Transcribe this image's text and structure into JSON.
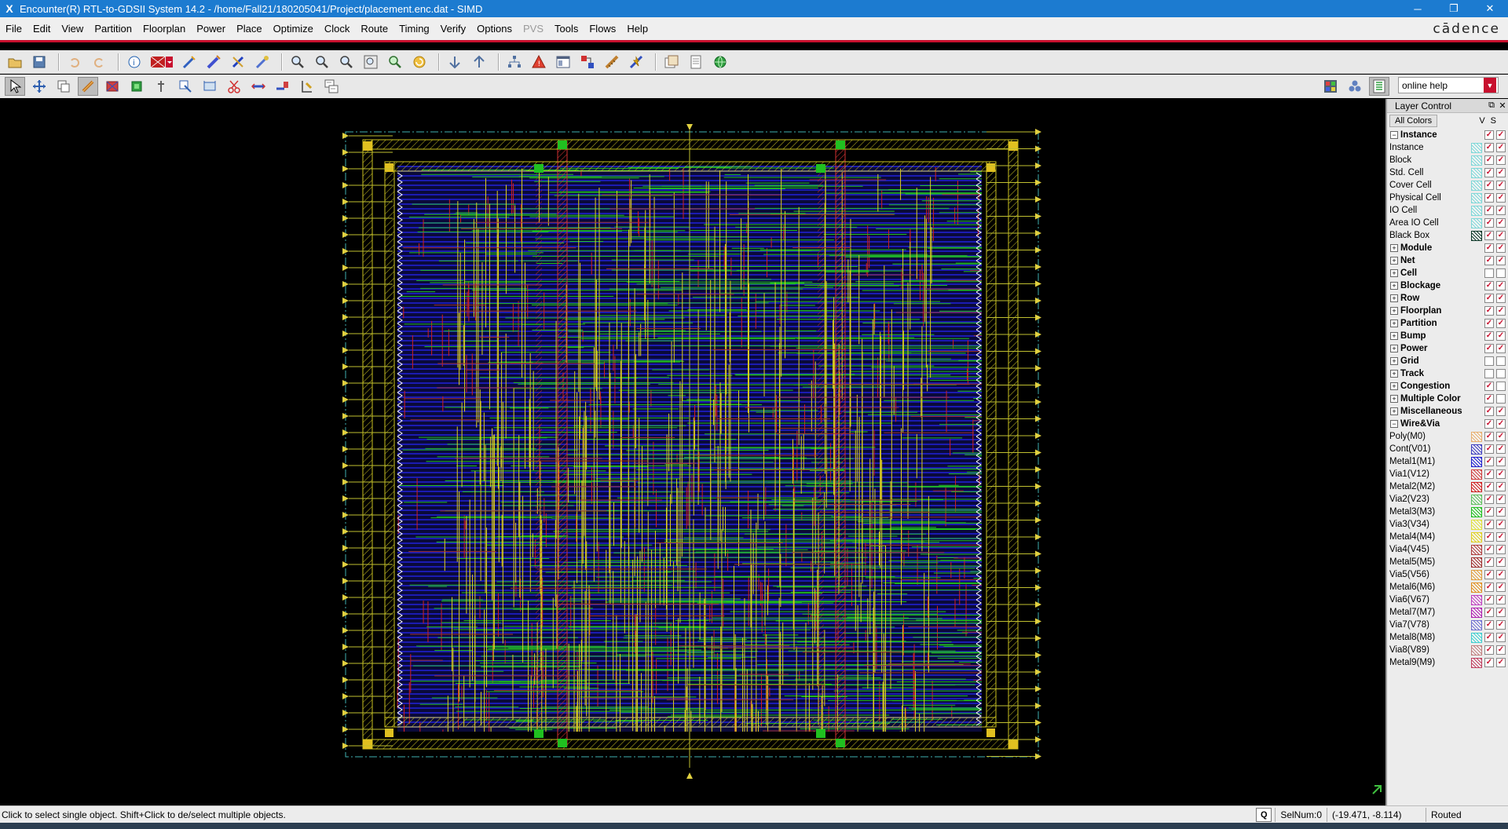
{
  "window": {
    "title": "Encounter(R) RTL-to-GDSII System 14.2 - /home/Fall21/180205041/Project/placement.enc.dat - SIMD",
    "app_icon": "X",
    "minimize": "─",
    "maximize": "❐",
    "close": "✕"
  },
  "menu": {
    "items": [
      {
        "label": "File",
        "enabled": true
      },
      {
        "label": "Edit",
        "enabled": true
      },
      {
        "label": "View",
        "enabled": true
      },
      {
        "label": "Partition",
        "enabled": true
      },
      {
        "label": "Floorplan",
        "enabled": true
      },
      {
        "label": "Power",
        "enabled": true
      },
      {
        "label": "Place",
        "enabled": true
      },
      {
        "label": "Optimize",
        "enabled": true
      },
      {
        "label": "Clock",
        "enabled": true
      },
      {
        "label": "Route",
        "enabled": true
      },
      {
        "label": "Timing",
        "enabled": true
      },
      {
        "label": "Verify",
        "enabled": true
      },
      {
        "label": "Options",
        "enabled": true
      },
      {
        "label": "PVS",
        "enabled": false
      },
      {
        "label": "Tools",
        "enabled": true
      },
      {
        "label": "Flows",
        "enabled": true
      },
      {
        "label": "Help",
        "enabled": true
      }
    ],
    "brand": "cādence"
  },
  "toolbar": {
    "help_search_value": "online help"
  },
  "layer_control": {
    "title": "Layer Control",
    "all_colors": "All Colors",
    "v_header": "V",
    "s_header": "S",
    "rows": [
      {
        "label": "Instance",
        "type": "group",
        "expanded": true,
        "v": true,
        "s": true
      },
      {
        "label": "Instance",
        "type": "item",
        "color": "#7fd8d8",
        "v": true,
        "s": true
      },
      {
        "label": "Block",
        "type": "item",
        "color": "#7fd8d8",
        "v": true,
        "s": true
      },
      {
        "label": "Std. Cell",
        "type": "item",
        "color": "#7fd8d8",
        "v": true,
        "s": true
      },
      {
        "label": "Cover Cell",
        "type": "item",
        "color": "#7fd8d8",
        "v": true,
        "s": true
      },
      {
        "label": "Physical Cell",
        "type": "item",
        "color": "#7fd8d8",
        "v": true,
        "s": true
      },
      {
        "label": "IO Cell",
        "type": "item",
        "color": "#7fd8d8",
        "v": true,
        "s": true
      },
      {
        "label": "Area IO Cell",
        "type": "item",
        "color": "#7fd8d8",
        "v": true,
        "s": true
      },
      {
        "label": "Black Box",
        "type": "item",
        "color": "#0f3a2a",
        "v": true,
        "s": true
      },
      {
        "label": "Module",
        "type": "group",
        "expanded": false,
        "v": true,
        "s": true
      },
      {
        "label": "Net",
        "type": "group",
        "expanded": false,
        "v": true,
        "s": true
      },
      {
        "label": "Cell",
        "type": "group",
        "expanded": false,
        "v": false,
        "s": false
      },
      {
        "label": "Blockage",
        "type": "group",
        "expanded": false,
        "v": true,
        "s": true
      },
      {
        "label": "Row",
        "type": "group",
        "expanded": false,
        "v": true,
        "s": true
      },
      {
        "label": "Floorplan",
        "type": "group",
        "expanded": false,
        "v": true,
        "s": true
      },
      {
        "label": "Partition",
        "type": "group",
        "expanded": false,
        "v": true,
        "s": true
      },
      {
        "label": "Bump",
        "type": "group",
        "expanded": false,
        "v": true,
        "s": true
      },
      {
        "label": "Power",
        "type": "group",
        "expanded": false,
        "v": true,
        "s": true
      },
      {
        "label": "Grid",
        "type": "group",
        "expanded": false,
        "v": false,
        "s": false
      },
      {
        "label": "Track",
        "type": "group",
        "expanded": false,
        "v": false,
        "s": false
      },
      {
        "label": "Congestion",
        "type": "group",
        "expanded": false,
        "v": true,
        "s": false
      },
      {
        "label": "Multiple Color",
        "type": "group",
        "expanded": false,
        "v": true,
        "s": false
      },
      {
        "label": "Miscellaneous",
        "type": "group",
        "expanded": false,
        "v": true,
        "s": true
      },
      {
        "label": "Wire&Via",
        "type": "group",
        "expanded": true,
        "v": true,
        "s": true
      },
      {
        "label": "Poly(M0)",
        "type": "item",
        "color": "#e8b070",
        "v": true,
        "s": true
      },
      {
        "label": "Cont(V01)",
        "type": "item",
        "color": "#4040c0",
        "v": true,
        "s": true
      },
      {
        "label": "Metal1(M1)",
        "type": "item",
        "color": "#2020d0",
        "v": true,
        "s": true
      },
      {
        "label": "Via1(V12)",
        "type": "item",
        "color": "#d04040",
        "v": true,
        "s": true
      },
      {
        "label": "Metal2(M2)",
        "type": "item",
        "color": "#d02020",
        "v": true,
        "s": true
      },
      {
        "label": "Via2(V23)",
        "type": "item",
        "color": "#60c060",
        "v": true,
        "s": true
      },
      {
        "label": "Metal3(M3)",
        "type": "item",
        "color": "#20c020",
        "v": true,
        "s": true
      },
      {
        "label": "Via3(V34)",
        "type": "item",
        "color": "#e0e040",
        "v": true,
        "s": true
      },
      {
        "label": "Metal4(M4)",
        "type": "item",
        "color": "#e0d020",
        "v": true,
        "s": true
      },
      {
        "label": "Via4(V45)",
        "type": "item",
        "color": "#b04040",
        "v": true,
        "s": true
      },
      {
        "label": "Metal5(M5)",
        "type": "item",
        "color": "#a03030",
        "v": true,
        "s": true
      },
      {
        "label": "Via5(V56)",
        "type": "item",
        "color": "#e0a040",
        "v": true,
        "s": true
      },
      {
        "label": "Metal6(M6)",
        "type": "item",
        "color": "#e09020",
        "v": true,
        "s": true
      },
      {
        "label": "Via6(V67)",
        "type": "item",
        "color": "#c040c0",
        "v": true,
        "s": true
      },
      {
        "label": "Metal7(M7)",
        "type": "item",
        "color": "#b020b0",
        "v": true,
        "s": true
      },
      {
        "label": "Via7(V78)",
        "type": "item",
        "color": "#7070d0",
        "v": true,
        "s": true
      },
      {
        "label": "Metal8(M8)",
        "type": "item",
        "color": "#40d0d0",
        "v": true,
        "s": true
      },
      {
        "label": "Via8(V89)",
        "type": "item",
        "color": "#c08080",
        "v": true,
        "s": true
      },
      {
        "label": "Metal9(M9)",
        "type": "item",
        "color": "#c04060",
        "v": true,
        "s": true
      }
    ]
  },
  "status": {
    "message": "Click to select single object. Shift+Click to de/select multiple objects.",
    "q_label": "Q",
    "selnum": "SelNum:0",
    "coords": "(-19.471, -8.114)",
    "state": "Routed"
  },
  "colors": {
    "titlebar": "#1c7bd0",
    "accent_red": "#c8102e",
    "metal1": "#2020d0",
    "metal2": "#d02020",
    "metal3": "#20c020",
    "metal4": "#e0d020"
  }
}
